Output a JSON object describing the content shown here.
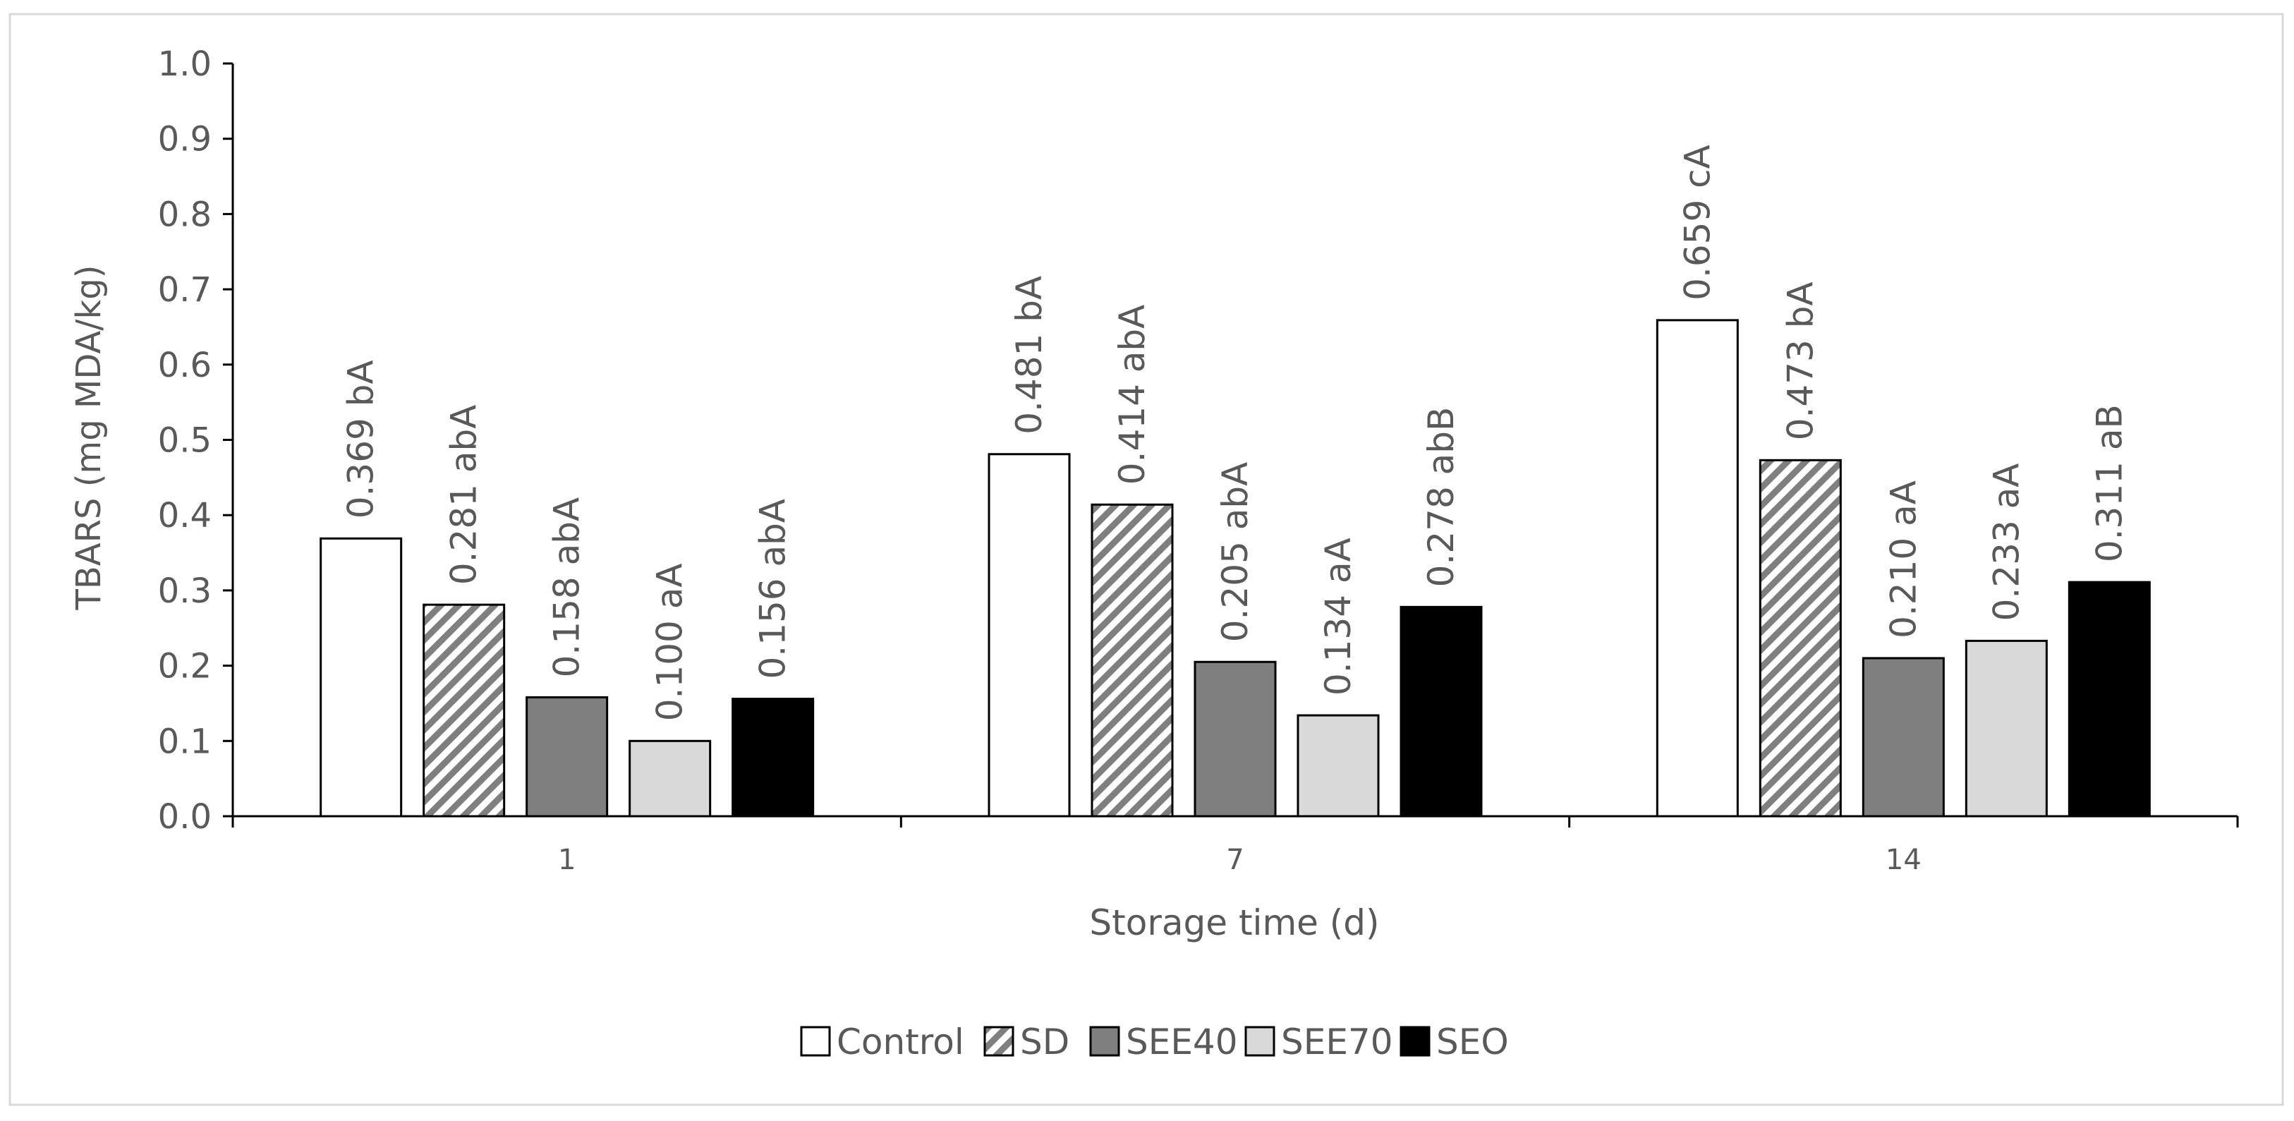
{
  "chart_data": {
    "type": "bar",
    "title": "",
    "xlabel": "Storage time (d)",
    "ylabel": "TBARS (mg MDA/kg)",
    "ylim": [
      0,
      1.0
    ],
    "y_ticks": [
      "0.0",
      "0.1",
      "0.2",
      "0.3",
      "0.4",
      "0.5",
      "0.6",
      "0.7",
      "0.8",
      "0.9",
      "1.0"
    ],
    "categories": [
      "1",
      "7",
      "14"
    ],
    "grid": false,
    "legend_position": "bottom",
    "series": [
      {
        "name": "Control",
        "fill": "#ffffff",
        "pattern": "none",
        "values": [
          0.369,
          0.481,
          0.659
        ],
        "labels": [
          "0.369 bA",
          "0.481 bA",
          "0.659 cA"
        ]
      },
      {
        "name": "SD",
        "fill": "#ffffff",
        "pattern": "diagonal-stripes",
        "values": [
          0.281,
          0.414,
          0.473
        ],
        "labels": [
          "0.281 abA",
          "0.414 abA",
          "0.473 bA"
        ]
      },
      {
        "name": "SEE40",
        "fill": "#7f7f7f",
        "pattern": "none",
        "values": [
          0.158,
          0.205,
          0.21
        ],
        "labels": [
          "0.158 abA",
          "0.205 abA",
          "0.210 aA"
        ]
      },
      {
        "name": "SEE70",
        "fill": "#d9d9d9",
        "pattern": "none",
        "values": [
          0.1,
          0.134,
          0.233
        ],
        "labels": [
          "0.100 aA",
          "0.134 aA",
          "0.233 aA"
        ]
      },
      {
        "name": "SEO",
        "fill": "#000000",
        "pattern": "none",
        "values": [
          0.156,
          0.278,
          0.311
        ],
        "labels": [
          "0.156 abA",
          "0.278 abB",
          "0.311 aB"
        ]
      }
    ]
  }
}
